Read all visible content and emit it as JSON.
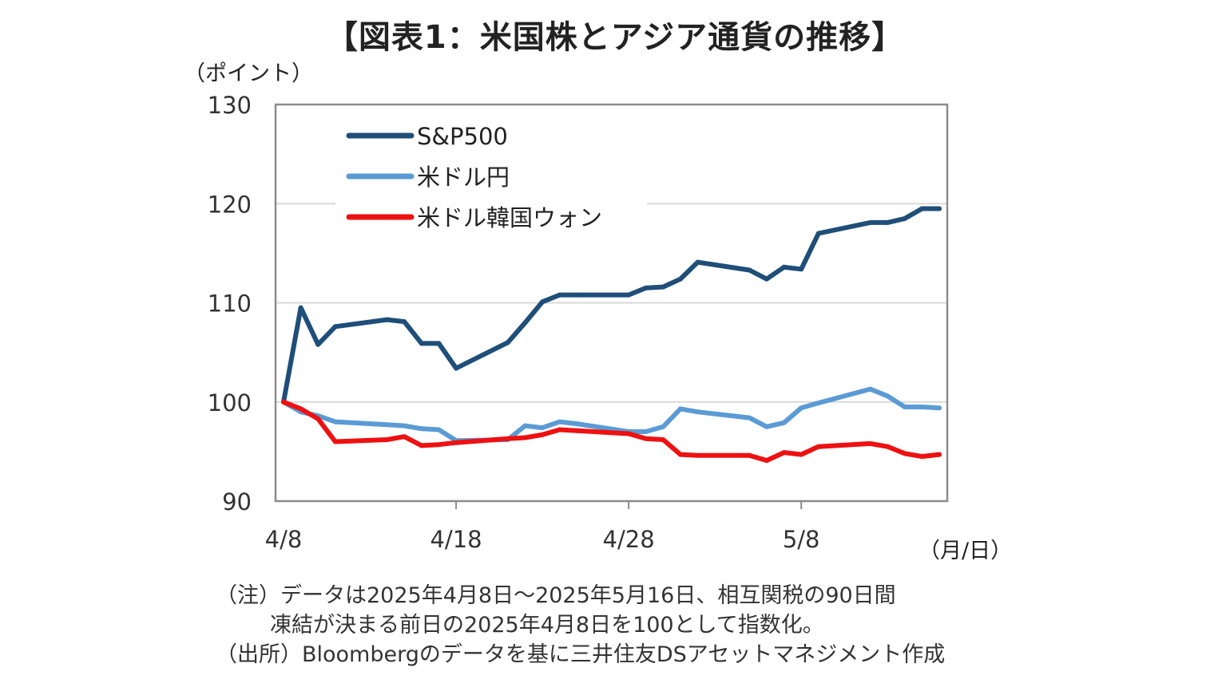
{
  "title": "【図表1：米国株とアジア通貨の推移】",
  "y_unit": "（ポイント）",
  "x_unit": "（月/日）",
  "notes": [
    "（注）データは2025年4月8日～2025年5月16日、相互関税の90日間",
    "凍結が決まる前日の2025年4月8日を100として指数化。",
    "（出所）Bloombergのデータを基に三井住友DSアセットマネジメント作成"
  ],
  "chart_data": {
    "type": "line",
    "title": "【図表1：米国株とアジア通貨の推移】",
    "ylabel": "（ポイント）",
    "xlabel": "（月/日）",
    "ylim": [
      90,
      130
    ],
    "yticks": [
      90,
      100,
      110,
      120,
      130
    ],
    "x_range_days": [
      0,
      38
    ],
    "xticks": [
      {
        "day": 0,
        "label": "4/8"
      },
      {
        "day": 10,
        "label": "4/18"
      },
      {
        "day": 20,
        "label": "4/28"
      },
      {
        "day": 30,
        "label": "5/8"
      }
    ],
    "grid": "horizontal",
    "legend_position": "top-left",
    "x": [
      "4/8",
      "4/9",
      "4/10",
      "4/11",
      "4/14",
      "4/15",
      "4/16",
      "4/17",
      "4/18",
      "4/21",
      "4/22",
      "4/23",
      "4/24",
      "4/25",
      "4/28",
      "4/29",
      "4/30",
      "5/1",
      "5/2",
      "5/5",
      "5/6",
      "5/7",
      "5/8",
      "5/9",
      "5/12",
      "5/13",
      "5/14",
      "5/15",
      "5/16"
    ],
    "series": [
      {
        "name": "S&P500",
        "color": "#1f4e79",
        "values": [
          100,
          109.5,
          105.8,
          107.6,
          108.3,
          108.1,
          105.9,
          105.9,
          103.4,
          106.0,
          108.0,
          110.1,
          110.8,
          110.8,
          110.8,
          111.5,
          111.6,
          112.4,
          114.1,
          113.3,
          112.4,
          113.6,
          113.4,
          117.0,
          118.1,
          118.1,
          118.5,
          119.5,
          119.5
        ]
      },
      {
        "name": "米ドル円",
        "color": "#5b9bd5",
        "values": [
          100,
          99.0,
          98.6,
          98.0,
          97.7,
          97.6,
          97.3,
          97.2,
          96.1,
          96.2,
          97.6,
          97.4,
          98.0,
          97.8,
          97.0,
          97.0,
          97.5,
          99.3,
          99.0,
          98.4,
          97.5,
          97.9,
          99.4,
          99.9,
          101.3,
          100.6,
          99.5,
          99.5,
          99.4
        ]
      },
      {
        "name": "米ドル韓国ウォン",
        "color": "#ee1111",
        "values": [
          100,
          99.3,
          98.3,
          96.0,
          96.2,
          96.5,
          95.6,
          95.7,
          95.9,
          96.3,
          96.4,
          96.7,
          97.2,
          97.1,
          96.8,
          96.3,
          96.2,
          94.7,
          94.6,
          94.6,
          94.1,
          94.9,
          94.7,
          95.5,
          95.8,
          95.5,
          94.8,
          94.5,
          94.7
        ]
      }
    ]
  }
}
